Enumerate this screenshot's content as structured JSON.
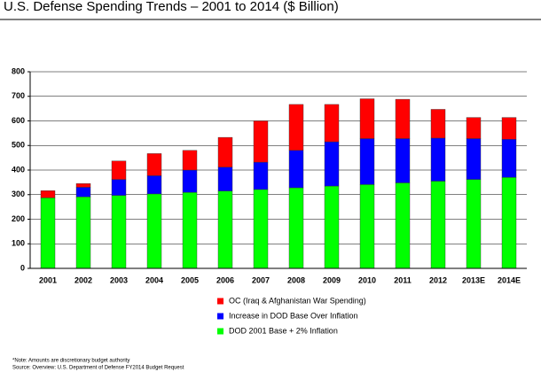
{
  "chart_data": {
    "type": "stacked-bar",
    "title": "U.S. Defense Spending Trends – 2001 to 2014 ($ Billion)",
    "categories": [
      "2001",
      "2002",
      "2003",
      "2004",
      "2005",
      "2006",
      "2007",
      "2008",
      "2009",
      "2010",
      "2011",
      "2012",
      "2013E",
      "2014E"
    ],
    "series": [
      {
        "name": "DOD 2001 Base + 2% Inflation",
        "color": "#00ff00",
        "values": [
          287,
          291,
          297,
          303,
          309,
          315,
          321,
          328,
          335,
          341,
          348,
          355,
          362,
          370
        ]
      },
      {
        "name": "Increase in DOD Base Over Inflation",
        "color": "#0000ff",
        "values": [
          0,
          39,
          65,
          74,
          91,
          97,
          111,
          152,
          180,
          187,
          180,
          175,
          166,
          155
        ]
      },
      {
        "name": "OC (Iraq & Afghanistan War Spending)",
        "color": "#ff0000",
        "values": [
          29,
          15,
          75,
          90,
          80,
          121,
          168,
          187,
          152,
          162,
          160,
          117,
          86,
          89
        ]
      }
    ],
    "ylim": [
      0,
      800
    ],
    "yticks": [
      0,
      100,
      200,
      300,
      400,
      500,
      600,
      700,
      800
    ],
    "grid": true,
    "notes": [
      "*Note: Amounts are discretionary budget authority",
      "Source: Overview: U.S. Department of Defense FY2014 Budget Request"
    ]
  }
}
